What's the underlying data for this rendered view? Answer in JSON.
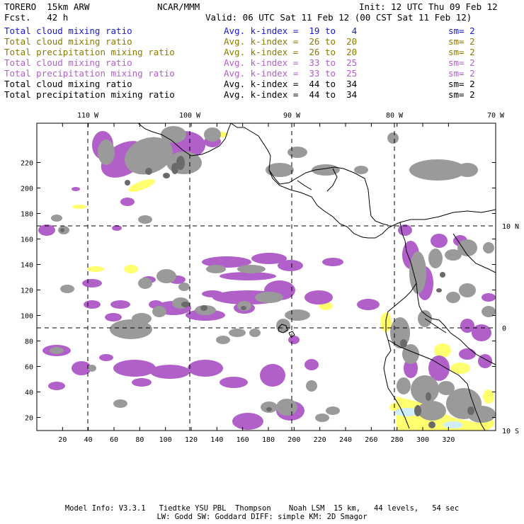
{
  "header": {
    "model": "TORERO  15km ARW",
    "center": "NCAR/MMM",
    "init": "Init: 12 UTC Thu 09 Feb 12",
    "fcst": "Fcst.   42 h",
    "valid": "Valid: 06 UTC Sat 11 Feb 12 (00 CST Sat 11 Feb 12)"
  },
  "legend": [
    {
      "field": "Total cloud mixing ratio",
      "kindex": "Avg. k-index =  19 to   4",
      "sm": "sm= 2",
      "color": "#1a1acc"
    },
    {
      "field": "Total cloud mixing ratio",
      "kindex": "Avg. k-index =  26 to  20",
      "sm": "sm= 2",
      "color": "#8a7a00"
    },
    {
      "field": "Total precipitation mixing ratio",
      "kindex": "Avg. k-index =  26 to  20",
      "sm": "sm= 2",
      "color": "#8a7a00"
    },
    {
      "field": "Total cloud mixing ratio",
      "kindex": "Avg. k-index =  33 to  25",
      "sm": "sm= 2",
      "color": "#b060c8"
    },
    {
      "field": "Total precipitation mixing ratio",
      "kindex": "Avg. k-index =  33 to  25",
      "sm": "sm= 2",
      "color": "#b060c8"
    },
    {
      "field": "Total cloud mixing ratio",
      "kindex": "Avg. k-index =  44 to  34",
      "sm": "sm= 2",
      "color": "#000000"
    },
    {
      "field": "Total precipitation mixing ratio",
      "kindex": "Avg. k-index =  44 to  34",
      "sm": "sm= 2",
      "color": "#000000"
    }
  ],
  "map": {
    "x_grid_ticks": [
      "20",
      "40",
      "60",
      "80",
      "100",
      "120",
      "140",
      "160",
      "180",
      "200",
      "220",
      "240",
      "260",
      "280",
      "300",
      "320"
    ],
    "y_grid_ticks": [
      "20",
      "40",
      "60",
      "80",
      "100",
      "120",
      "140",
      "160",
      "180",
      "200",
      "220"
    ],
    "longitude_labels": [
      "110 W",
      "100 W",
      "90 W",
      "80 W",
      "70 W"
    ],
    "latitude_labels": [
      "10 N",
      "0",
      "10 S"
    ],
    "colors": {
      "purple": "#b060c8",
      "gray": "#9a9a9a",
      "darkgray": "#6a6a6a",
      "yellow": "#ffff70",
      "lightblue": "#cfeefa"
    }
  },
  "footer": {
    "line1": "Model Info: V3.3.1   Tiedtke YSU PBL  Thompson    Noah LSM  15 km,   44 levels,   54 sec",
    "line2": "LW: Godd SW: Goddard DIFF: simple KM: 2D Smagor"
  }
}
